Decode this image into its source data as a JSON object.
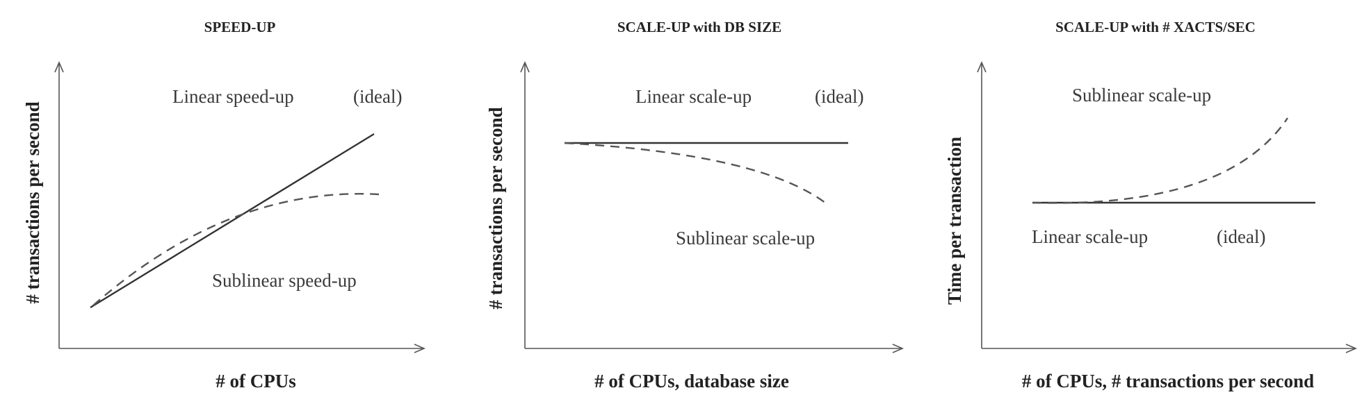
{
  "panels": [
    {
      "title": "SPEED-UP",
      "xlabel": "# of CPUs",
      "ylabel": "# transactions per second",
      "annotations": [
        "Linear speed-up",
        "(ideal)",
        "Sublinear speed-up"
      ],
      "curves": [
        "linear-ideal",
        "sublinear"
      ]
    },
    {
      "title": "SCALE-UP with DB SIZE",
      "xlabel": "# of CPUs, database size",
      "ylabel": "# transactions per second",
      "annotations": [
        "Linear scale-up",
        "(ideal)",
        "Sublinear scale-up"
      ],
      "curves": [
        "linear-ideal",
        "sublinear"
      ]
    },
    {
      "title": "SCALE-UP with # XACTS/SEC",
      "xlabel": "# of CPUs, # transactions per second",
      "ylabel": "Time per transaction",
      "annotations": [
        "Sublinear scale-up",
        "Linear scale-up",
        "(ideal)"
      ],
      "curves": [
        "sublinear",
        "linear-ideal"
      ]
    }
  ]
}
